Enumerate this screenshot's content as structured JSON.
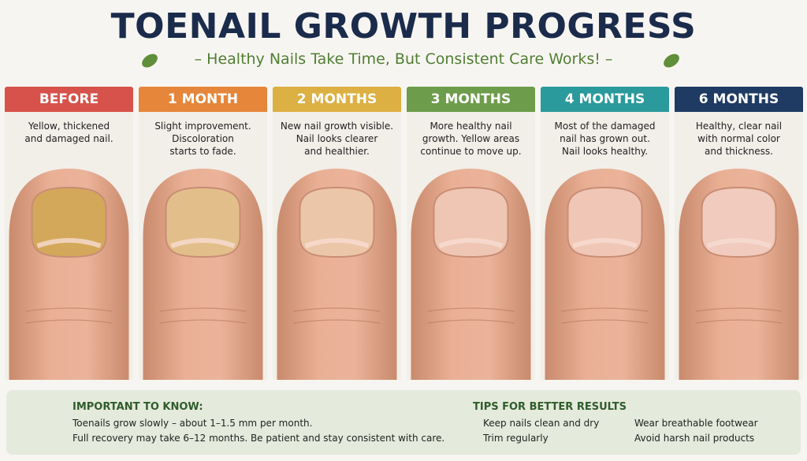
{
  "header": {
    "title": "TOENAIL GROWTH PROGRESS",
    "subtitle": "– Healthy Nails Take Time, But Consistent Care Works! –"
  },
  "stages": [
    {
      "label": "BEFORE",
      "description": [
        "Yellow, thickened",
        "and damaged nail."
      ]
    },
    {
      "label": "1 MONTH",
      "description": [
        "Slight improvement.",
        "Discoloration",
        "starts to fade."
      ]
    },
    {
      "label": "2 MONTHS",
      "description": [
        "New nail growth visible.",
        "Nail looks clearer",
        "and healthier."
      ]
    },
    {
      "label": "3 MONTHS",
      "description": [
        "More healthy nail",
        "growth. Yellow areas",
        "continue to move up."
      ]
    },
    {
      "label": "4 MONTHS",
      "description": [
        "Most of the damaged",
        "nail has grown out.",
        "Nail looks healthy."
      ]
    },
    {
      "label": "6 MONTHS",
      "description": [
        "Healthy, clear nail",
        "with normal color",
        "and thickness."
      ]
    }
  ],
  "important": {
    "title": "IMPORTANT TO KNOW:",
    "lines": [
      "Toenails grow slowly – about 1–1.5 mm per month.",
      "Full recovery may take 6–12 months. Be patient and stay consistent with care."
    ]
  },
  "tips": {
    "title": "TIPS FOR BETTER RESULTS",
    "items": [
      "Keep nails clean and dry",
      "Trim regularly",
      "Wear breathable footwear",
      "Avoid harsh nail products"
    ]
  }
}
